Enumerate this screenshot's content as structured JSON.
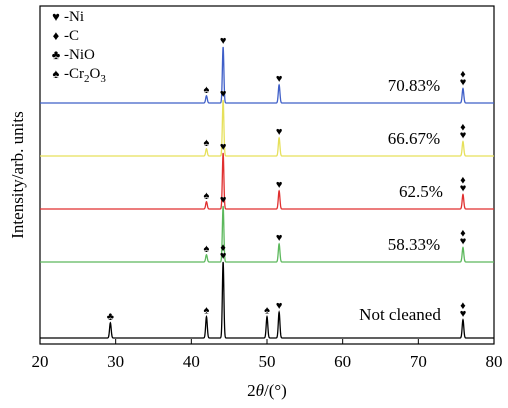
{
  "chart_data": {
    "type": "line",
    "xlabel": {
      "pre": "2",
      "italic": "θ",
      "post": "/(°)"
    },
    "ylabel": "Intensity/arb. units",
    "xlim": [
      20,
      80
    ],
    "xticks": [
      20,
      30,
      40,
      50,
      60,
      70,
      80
    ],
    "grid": false,
    "legend_position": "top-left",
    "legend": [
      {
        "symbol": "♥",
        "parts": [
          {
            "t": "-Ni"
          }
        ]
      },
      {
        "symbol": "♦",
        "parts": [
          {
            "t": "-C"
          }
        ]
      },
      {
        "symbol": "♣",
        "parts": [
          {
            "t": "-NiO"
          }
        ]
      },
      {
        "symbol": "♠",
        "parts": [
          {
            "t": "-Cr"
          },
          {
            "t": "2",
            "sub": true
          },
          {
            "t": "O"
          },
          {
            "t": "3",
            "sub": true
          }
        ]
      }
    ],
    "peaks": [
      {
        "x": 29.3,
        "h": 0.04,
        "w": 0.15
      },
      {
        "x": 42.0,
        "h": 0.04,
        "w": 0.15
      },
      {
        "x": 44.2,
        "h": 1.0,
        "w": 0.14
      },
      {
        "x": 50.0,
        "h": 0.06,
        "w": 0.15
      },
      {
        "x": 51.6,
        "h": 0.32,
        "w": 0.15
      },
      {
        "x": 75.9,
        "h": 0.22,
        "w": 0.15
      }
    ],
    "series": [
      {
        "name": "70.83%",
        "color": "#3f5fc8",
        "peak_scale": [
          0,
          0.08,
          0.62,
          0,
          0.2,
          0.16
        ],
        "markers": [
          {
            "x": 42.0,
            "symbols": [
              "♠"
            ]
          },
          {
            "x": 44.2,
            "symbols": [
              "♥"
            ]
          },
          {
            "x": 51.6,
            "symbols": [
              "♥"
            ]
          },
          {
            "x": 75.9,
            "symbols": [
              "♦",
              "♥"
            ]
          }
        ]
      },
      {
        "name": "66.67%",
        "color": "#e6e05a",
        "peak_scale": [
          0,
          0.08,
          0.62,
          0,
          0.2,
          0.16
        ],
        "markers": [
          {
            "x": 42.0,
            "symbols": [
              "♠"
            ]
          },
          {
            "x": 44.2,
            "symbols": [
              "♥"
            ]
          },
          {
            "x": 51.6,
            "symbols": [
              "♥"
            ]
          },
          {
            "x": 75.9,
            "symbols": [
              "♦",
              "♥"
            ]
          }
        ]
      },
      {
        "name": "62.5%",
        "color": "#e02f2f",
        "peak_scale": [
          0,
          0.08,
          0.62,
          0,
          0.2,
          0.16
        ],
        "markers": [
          {
            "x": 42.0,
            "symbols": [
              "♠"
            ]
          },
          {
            "x": 44.2,
            "symbols": [
              "♥"
            ]
          },
          {
            "x": 51.6,
            "symbols": [
              "♥"
            ]
          },
          {
            "x": 75.9,
            "symbols": [
              "♦",
              "♥"
            ]
          }
        ]
      },
      {
        "name": "58.33%",
        "color": "#5cb85c",
        "peak_scale": [
          0,
          0.08,
          0.62,
          0,
          0.2,
          0.16
        ],
        "markers": [
          {
            "x": 42.0,
            "symbols": [
              "♠"
            ]
          },
          {
            "x": 44.2,
            "symbols": [
              "♥"
            ]
          },
          {
            "x": 51.6,
            "symbols": [
              "♥"
            ]
          },
          {
            "x": 75.9,
            "symbols": [
              "♦",
              "♥"
            ]
          }
        ]
      },
      {
        "name": "Not cleaned",
        "color": "#000000",
        "peak_scale": [
          0.2,
          0.28,
          1.0,
          0.28,
          0.34,
          0.24
        ],
        "markers": [
          {
            "x": 29.3,
            "symbols": [
              "♣"
            ]
          },
          {
            "x": 42.0,
            "symbols": [
              "♠"
            ]
          },
          {
            "x": 44.2,
            "symbols": [
              "♦",
              "♥"
            ]
          },
          {
            "x": 50.0,
            "symbols": [
              "♠"
            ]
          },
          {
            "x": 51.6,
            "symbols": [
              "♥"
            ]
          },
          {
            "x": 75.9,
            "symbols": [
              "♦",
              "♥"
            ]
          }
        ]
      }
    ]
  }
}
